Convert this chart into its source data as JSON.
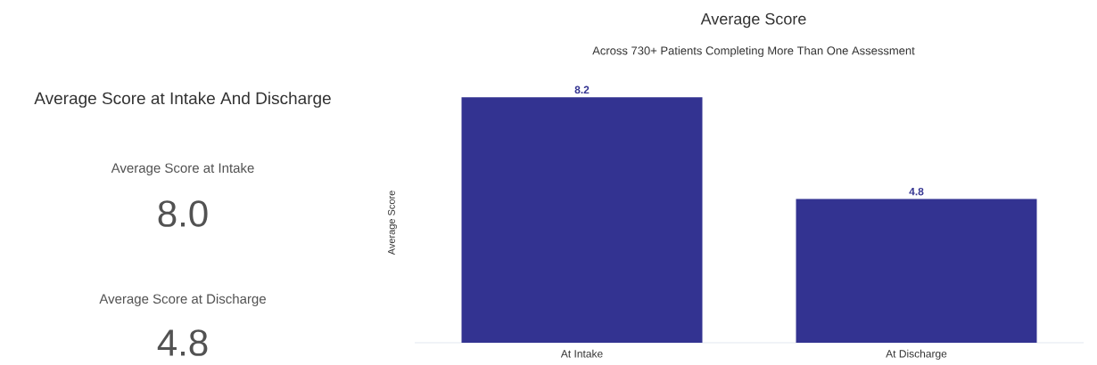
{
  "chart_data": [
    {
      "type": "other",
      "title": "Average Score at Intake And Discharge",
      "annotations": [
        "Average Score at Intake",
        "8.0",
        "Average Score at Discharge",
        "4.8"
      ]
    },
    {
      "type": "bar",
      "title": "Average Score",
      "subtitle": "Across 730+ Patients Completing More Than One Assessment",
      "ylabel": "Average Score",
      "categories": [
        "At Intake",
        "At Discharge"
      ],
      "values": [
        8.2,
        4.8
      ],
      "color": "#333391",
      "data_labels": true
    }
  ]
}
